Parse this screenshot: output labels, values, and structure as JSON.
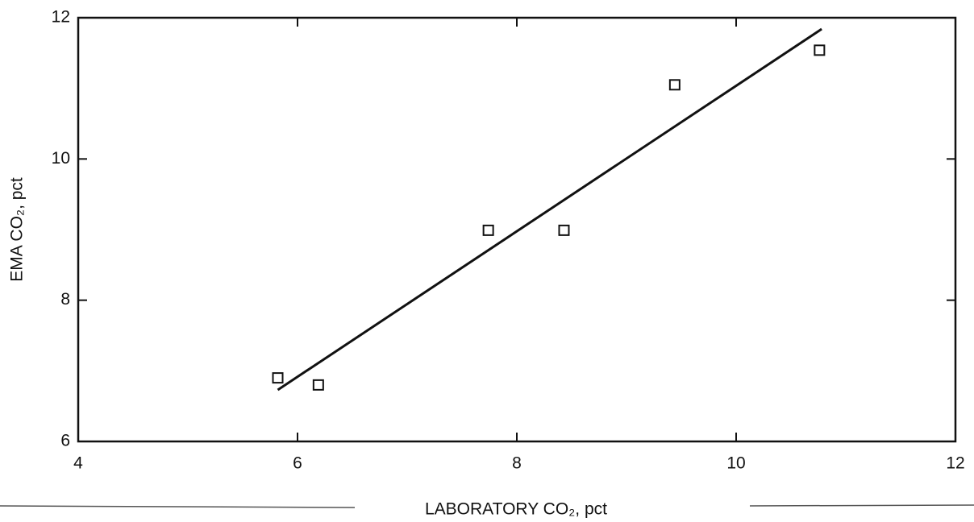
{
  "chart_data": {
    "type": "scatter",
    "xlabel": "LABORATORY CO₂, pct",
    "ylabel": "EMA CO₂, pct",
    "x": [
      5.82,
      6.19,
      7.74,
      8.43,
      9.44,
      10.76
    ],
    "values": [
      6.9,
      6.8,
      8.99,
      8.99,
      11.05,
      11.54
    ],
    "fit_line": {
      "x": [
        5.82,
        10.78
      ],
      "y": [
        6.73,
        11.84
      ]
    },
    "color": "#111111",
    "xlim": [
      4,
      12
    ],
    "xticks": [
      4,
      6,
      8,
      10,
      12
    ],
    "ylim": [
      6,
      12
    ],
    "yticks": [
      6,
      8,
      10,
      12
    ],
    "grid": false
  }
}
